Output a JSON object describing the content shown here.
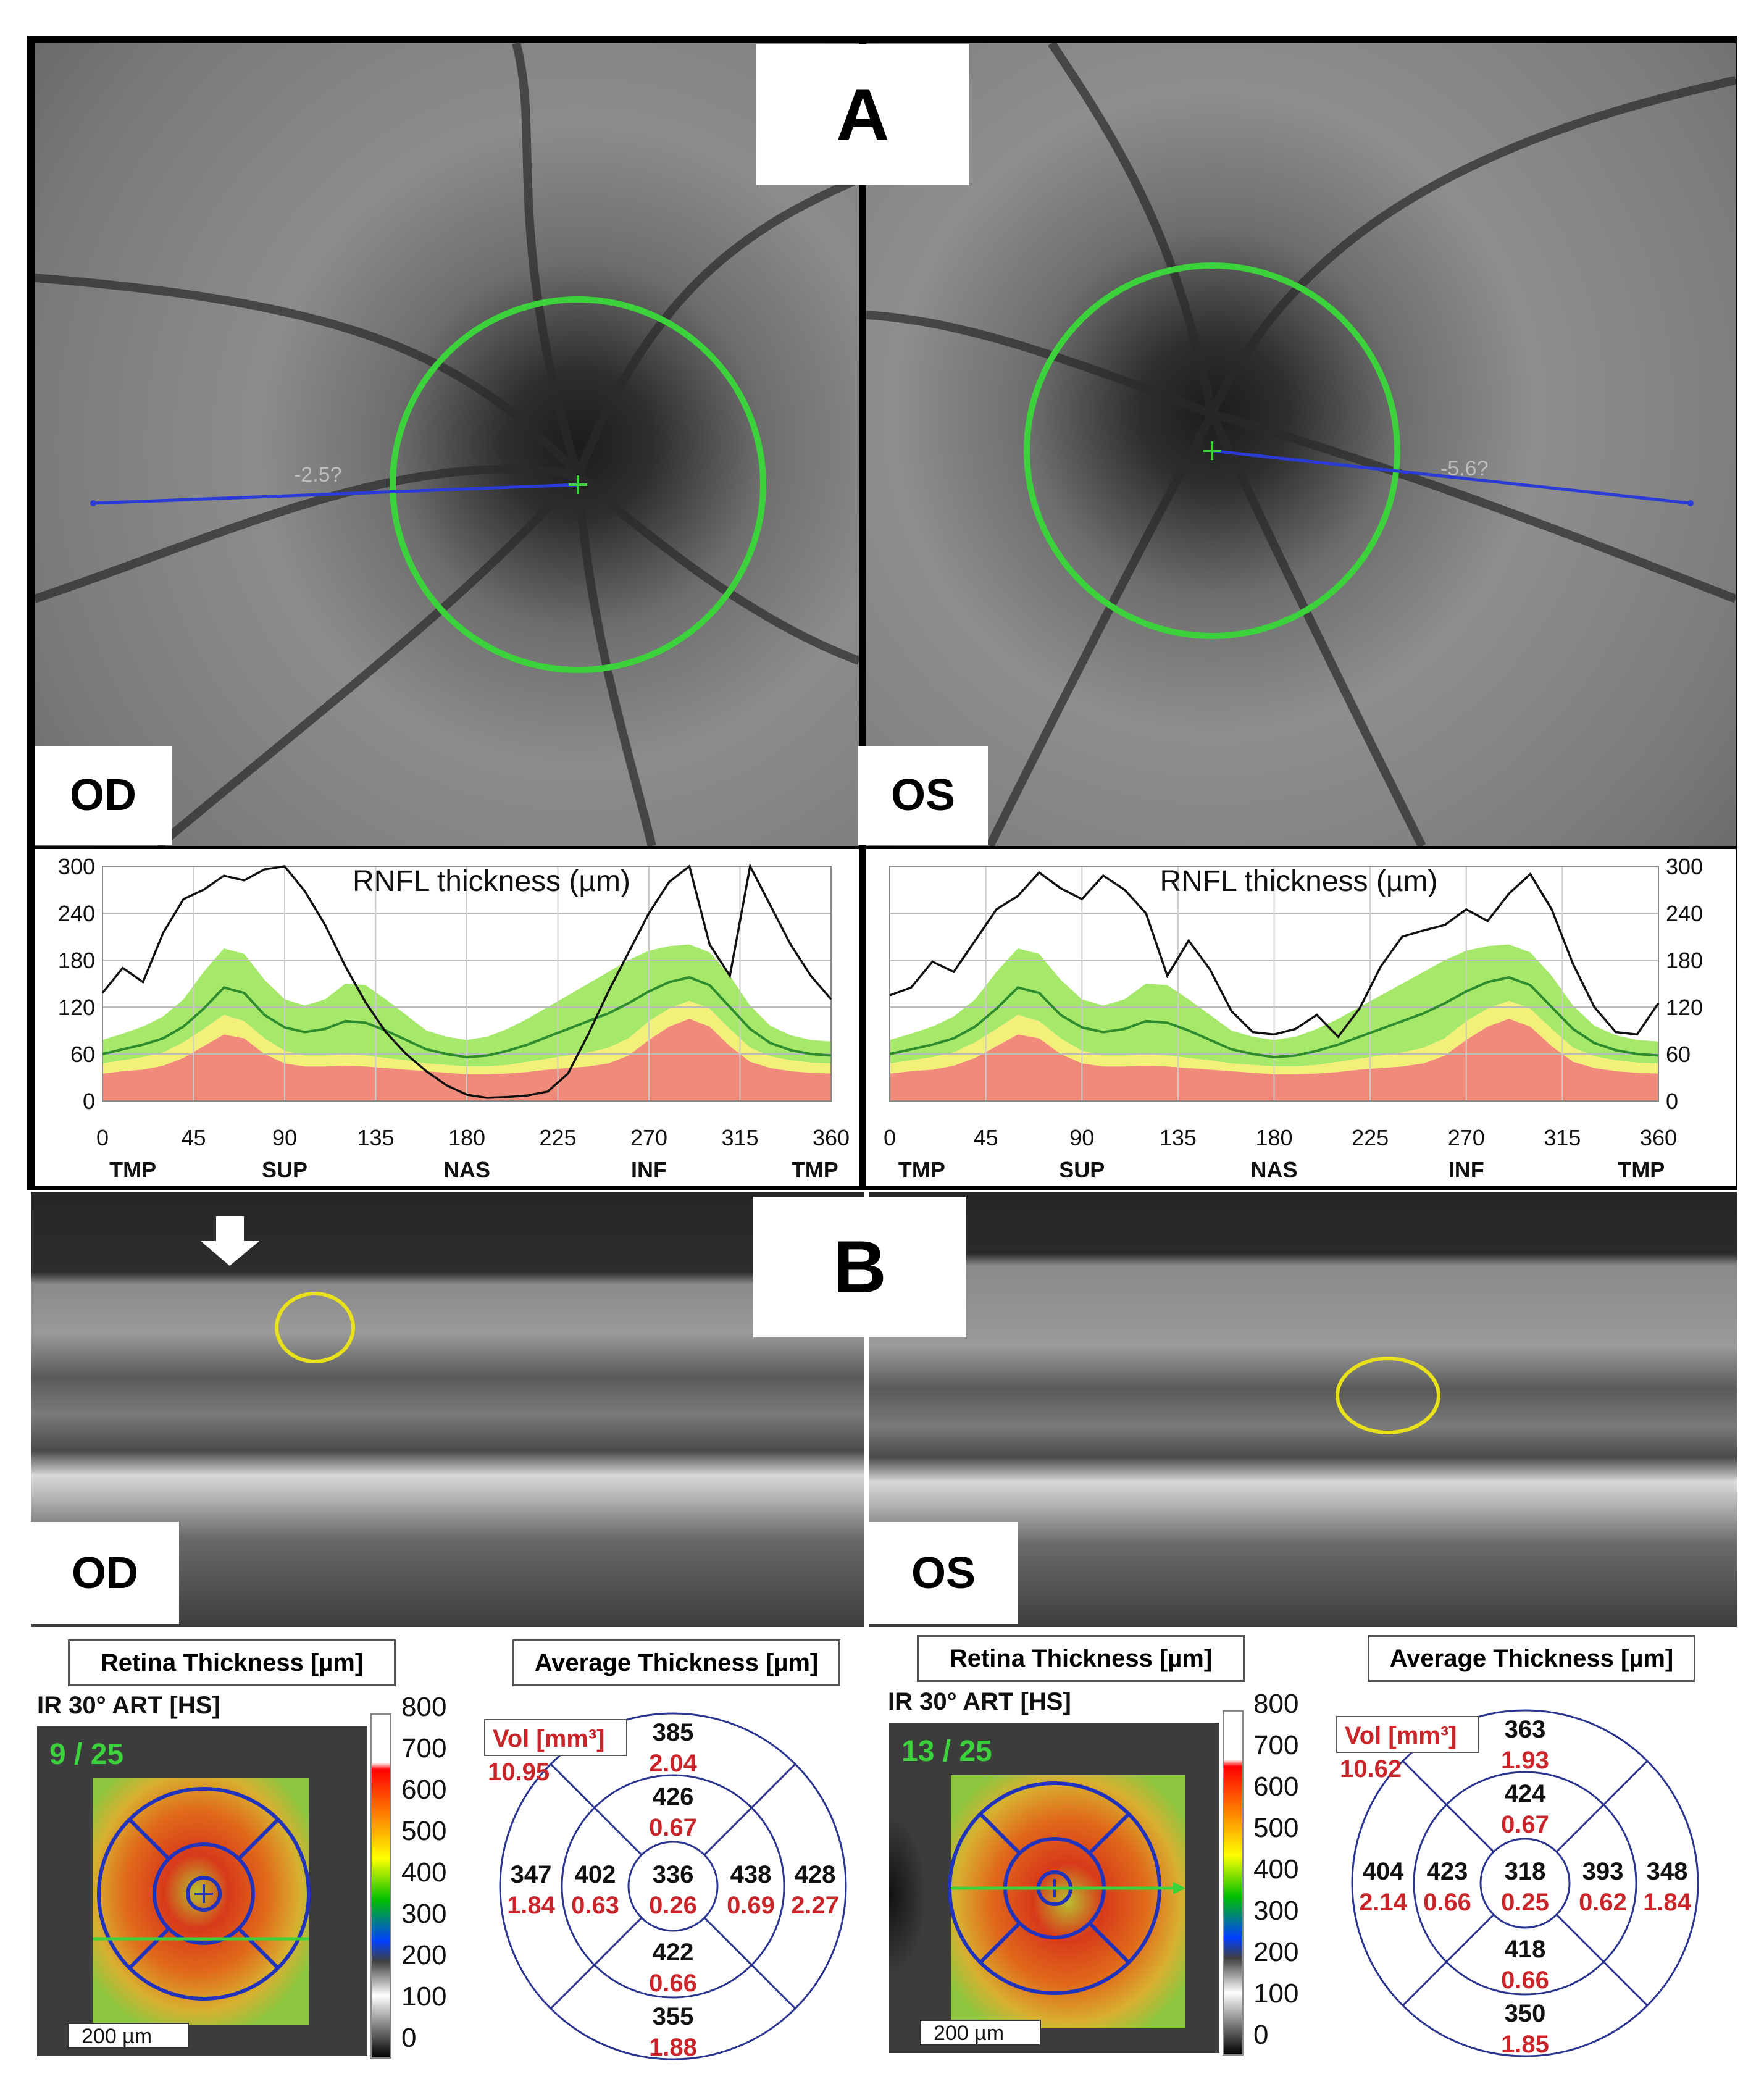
{
  "panel_a": {
    "label": "A",
    "od": {
      "eye_label": "OD",
      "measure_label": "-2.5?"
    },
    "os": {
      "eye_label": "OS",
      "measure_label": "-5.6?"
    }
  },
  "panel_b": {
    "label": "B",
    "od": {
      "eye_label": "OD"
    },
    "os": {
      "eye_label": "OS"
    }
  },
  "chart_data": [
    {
      "type": "line",
      "eye": "OD",
      "title": "RNFL thickness (µm)",
      "xlim": [
        0,
        360
      ],
      "ylim": [
        0,
        300
      ],
      "x_ticks": [
        0,
        45,
        90,
        135,
        180,
        225,
        270,
        315,
        360
      ],
      "y_ticks": [
        0,
        60,
        120,
        180,
        240,
        300
      ],
      "sector_labels": [
        {
          "x": 15,
          "text": "TMP"
        },
        {
          "x": 90,
          "text": "SUP"
        },
        {
          "x": 180,
          "text": "NAS"
        },
        {
          "x": 270,
          "text": "INF"
        },
        {
          "x": 352,
          "text": "TMP"
        }
      ],
      "measured": {
        "x": [
          0,
          10,
          20,
          30,
          40,
          50,
          60,
          70,
          80,
          90,
          100,
          110,
          120,
          130,
          140,
          150,
          160,
          170,
          180,
          190,
          200,
          210,
          220,
          230,
          240,
          250,
          260,
          270,
          280,
          290,
          300,
          310,
          320,
          330,
          340,
          350,
          360
        ],
        "y": [
          138,
          170,
          152,
          215,
          258,
          270,
          288,
          282,
          296,
          300,
          268,
          225,
          172,
          126,
          88,
          60,
          38,
          20,
          8,
          4,
          5,
          7,
          12,
          35,
          85,
          140,
          190,
          240,
          280,
          300,
          200,
          160,
          300,
          250,
          200,
          160,
          130
        ]
      }
    },
    {
      "type": "line",
      "eye": "OS",
      "title": "RNFL thickness (µm)",
      "xlim": [
        0,
        360
      ],
      "ylim": [
        0,
        300
      ],
      "x_ticks": [
        0,
        45,
        90,
        135,
        180,
        225,
        270,
        315,
        360
      ],
      "y_ticks": [
        0,
        60,
        120,
        180,
        240,
        300
      ],
      "sector_labels": [
        {
          "x": 15,
          "text": "TMP"
        },
        {
          "x": 90,
          "text": "SUP"
        },
        {
          "x": 180,
          "text": "NAS"
        },
        {
          "x": 270,
          "text": "INF"
        },
        {
          "x": 352,
          "text": "TMP"
        }
      ],
      "measured": {
        "x": [
          0,
          10,
          20,
          30,
          40,
          50,
          60,
          70,
          80,
          90,
          100,
          110,
          120,
          130,
          140,
          150,
          160,
          170,
          180,
          190,
          200,
          210,
          220,
          230,
          240,
          250,
          260,
          270,
          280,
          290,
          300,
          310,
          320,
          330,
          340,
          350,
          360
        ],
        "y": [
          135,
          145,
          178,
          165,
          205,
          245,
          262,
          292,
          272,
          258,
          288,
          270,
          240,
          160,
          205,
          168,
          115,
          88,
          85,
          92,
          110,
          82,
          118,
          172,
          210,
          218,
          225,
          245,
          230,
          265,
          290,
          245,
          175,
          120,
          88,
          85,
          125
        ]
      }
    }
  ],
  "normative_bands": {
    "x": [
      0,
      10,
      20,
      30,
      40,
      50,
      60,
      70,
      80,
      90,
      100,
      110,
      120,
      130,
      140,
      150,
      160,
      170,
      180,
      190,
      200,
      210,
      220,
      230,
      240,
      250,
      260,
      270,
      280,
      290,
      300,
      310,
      320,
      330,
      340,
      350,
      360
    ],
    "red_top": [
      35,
      38,
      40,
      45,
      55,
      70,
      85,
      80,
      60,
      48,
      44,
      44,
      45,
      44,
      42,
      40,
      38,
      36,
      34,
      34,
      35,
      37,
      40,
      42,
      44,
      48,
      58,
      78,
      95,
      105,
      95,
      70,
      50,
      42,
      38,
      36,
      35
    ],
    "yellow_top": [
      48,
      52,
      56,
      62,
      75,
      92,
      110,
      102,
      80,
      64,
      58,
      58,
      60,
      58,
      55,
      52,
      48,
      46,
      44,
      44,
      46,
      50,
      54,
      58,
      62,
      68,
      80,
      102,
      118,
      128,
      118,
      92,
      68,
      57,
      52,
      49,
      48
    ],
    "green_mid": [
      60,
      66,
      72,
      80,
      95,
      118,
      145,
      138,
      110,
      94,
      88,
      92,
      102,
      100,
      90,
      78,
      66,
      60,
      56,
      58,
      64,
      72,
      82,
      92,
      102,
      112,
      125,
      140,
      152,
      158,
      148,
      120,
      92,
      74,
      65,
      60,
      58
    ],
    "green_top": [
      78,
      86,
      95,
      108,
      130,
      165,
      195,
      188,
      155,
      130,
      122,
      130,
      150,
      148,
      130,
      110,
      90,
      82,
      78,
      82,
      92,
      105,
      120,
      135,
      150,
      165,
      180,
      192,
      198,
      200,
      190,
      160,
      122,
      96,
      84,
      78,
      76
    ]
  },
  "panel_c": {
    "od": {
      "box_left": "Retina Thickness [µm]",
      "box_right": "Average Thickness [µm]",
      "ir_label": "IR 30° ART [HS]",
      "scan_count": "9 / 25",
      "scale_bar": "200 µm",
      "colorbar_ticks": [
        "800",
        "700",
        "600",
        "500",
        "400",
        "300",
        "200",
        "100",
        "0"
      ],
      "vol_label": "Vol [mm³]",
      "total_vol": "10.95",
      "grid": {
        "center": {
          "t": "336",
          "v": "0.26"
        },
        "inner_superior": {
          "t": "426",
          "v": "0.67"
        },
        "inner_inferior": {
          "t": "422",
          "v": "0.66"
        },
        "inner_left": {
          "t": "402",
          "v": "0.63"
        },
        "inner_right": {
          "t": "438",
          "v": "0.69"
        },
        "outer_superior": {
          "t": "385",
          "v": "2.04"
        },
        "outer_inferior": {
          "t": "355",
          "v": "1.88"
        },
        "outer_left": {
          "t": "347",
          "v": "1.84"
        },
        "outer_right": {
          "t": "428",
          "v": "2.27"
        }
      }
    },
    "os": {
      "box_left": "Retina Thickness [µm]",
      "box_right": "Average Thickness [µm]",
      "ir_label": "IR 30° ART [HS]",
      "scan_count": "13 / 25",
      "scale_bar": "200 µm",
      "colorbar_ticks": [
        "800",
        "700",
        "600",
        "500",
        "400",
        "300",
        "200",
        "100",
        "0"
      ],
      "vol_label": "Vol [mm³]",
      "total_vol": "10.62",
      "grid": {
        "center": {
          "t": "318",
          "v": "0.25"
        },
        "inner_superior": {
          "t": "424",
          "v": "0.67"
        },
        "inner_inferior": {
          "t": "418",
          "v": "0.66"
        },
        "inner_left": {
          "t": "423",
          "v": "0.66"
        },
        "inner_right": {
          "t": "393",
          "v": "0.62"
        },
        "outer_superior": {
          "t": "363",
          "v": "1.93"
        },
        "outer_inferior": {
          "t": "350",
          "v": "1.85"
        },
        "outer_left": {
          "t": "404",
          "v": "2.14"
        },
        "outer_right": {
          "t": "348",
          "v": "1.84"
        }
      }
    }
  }
}
